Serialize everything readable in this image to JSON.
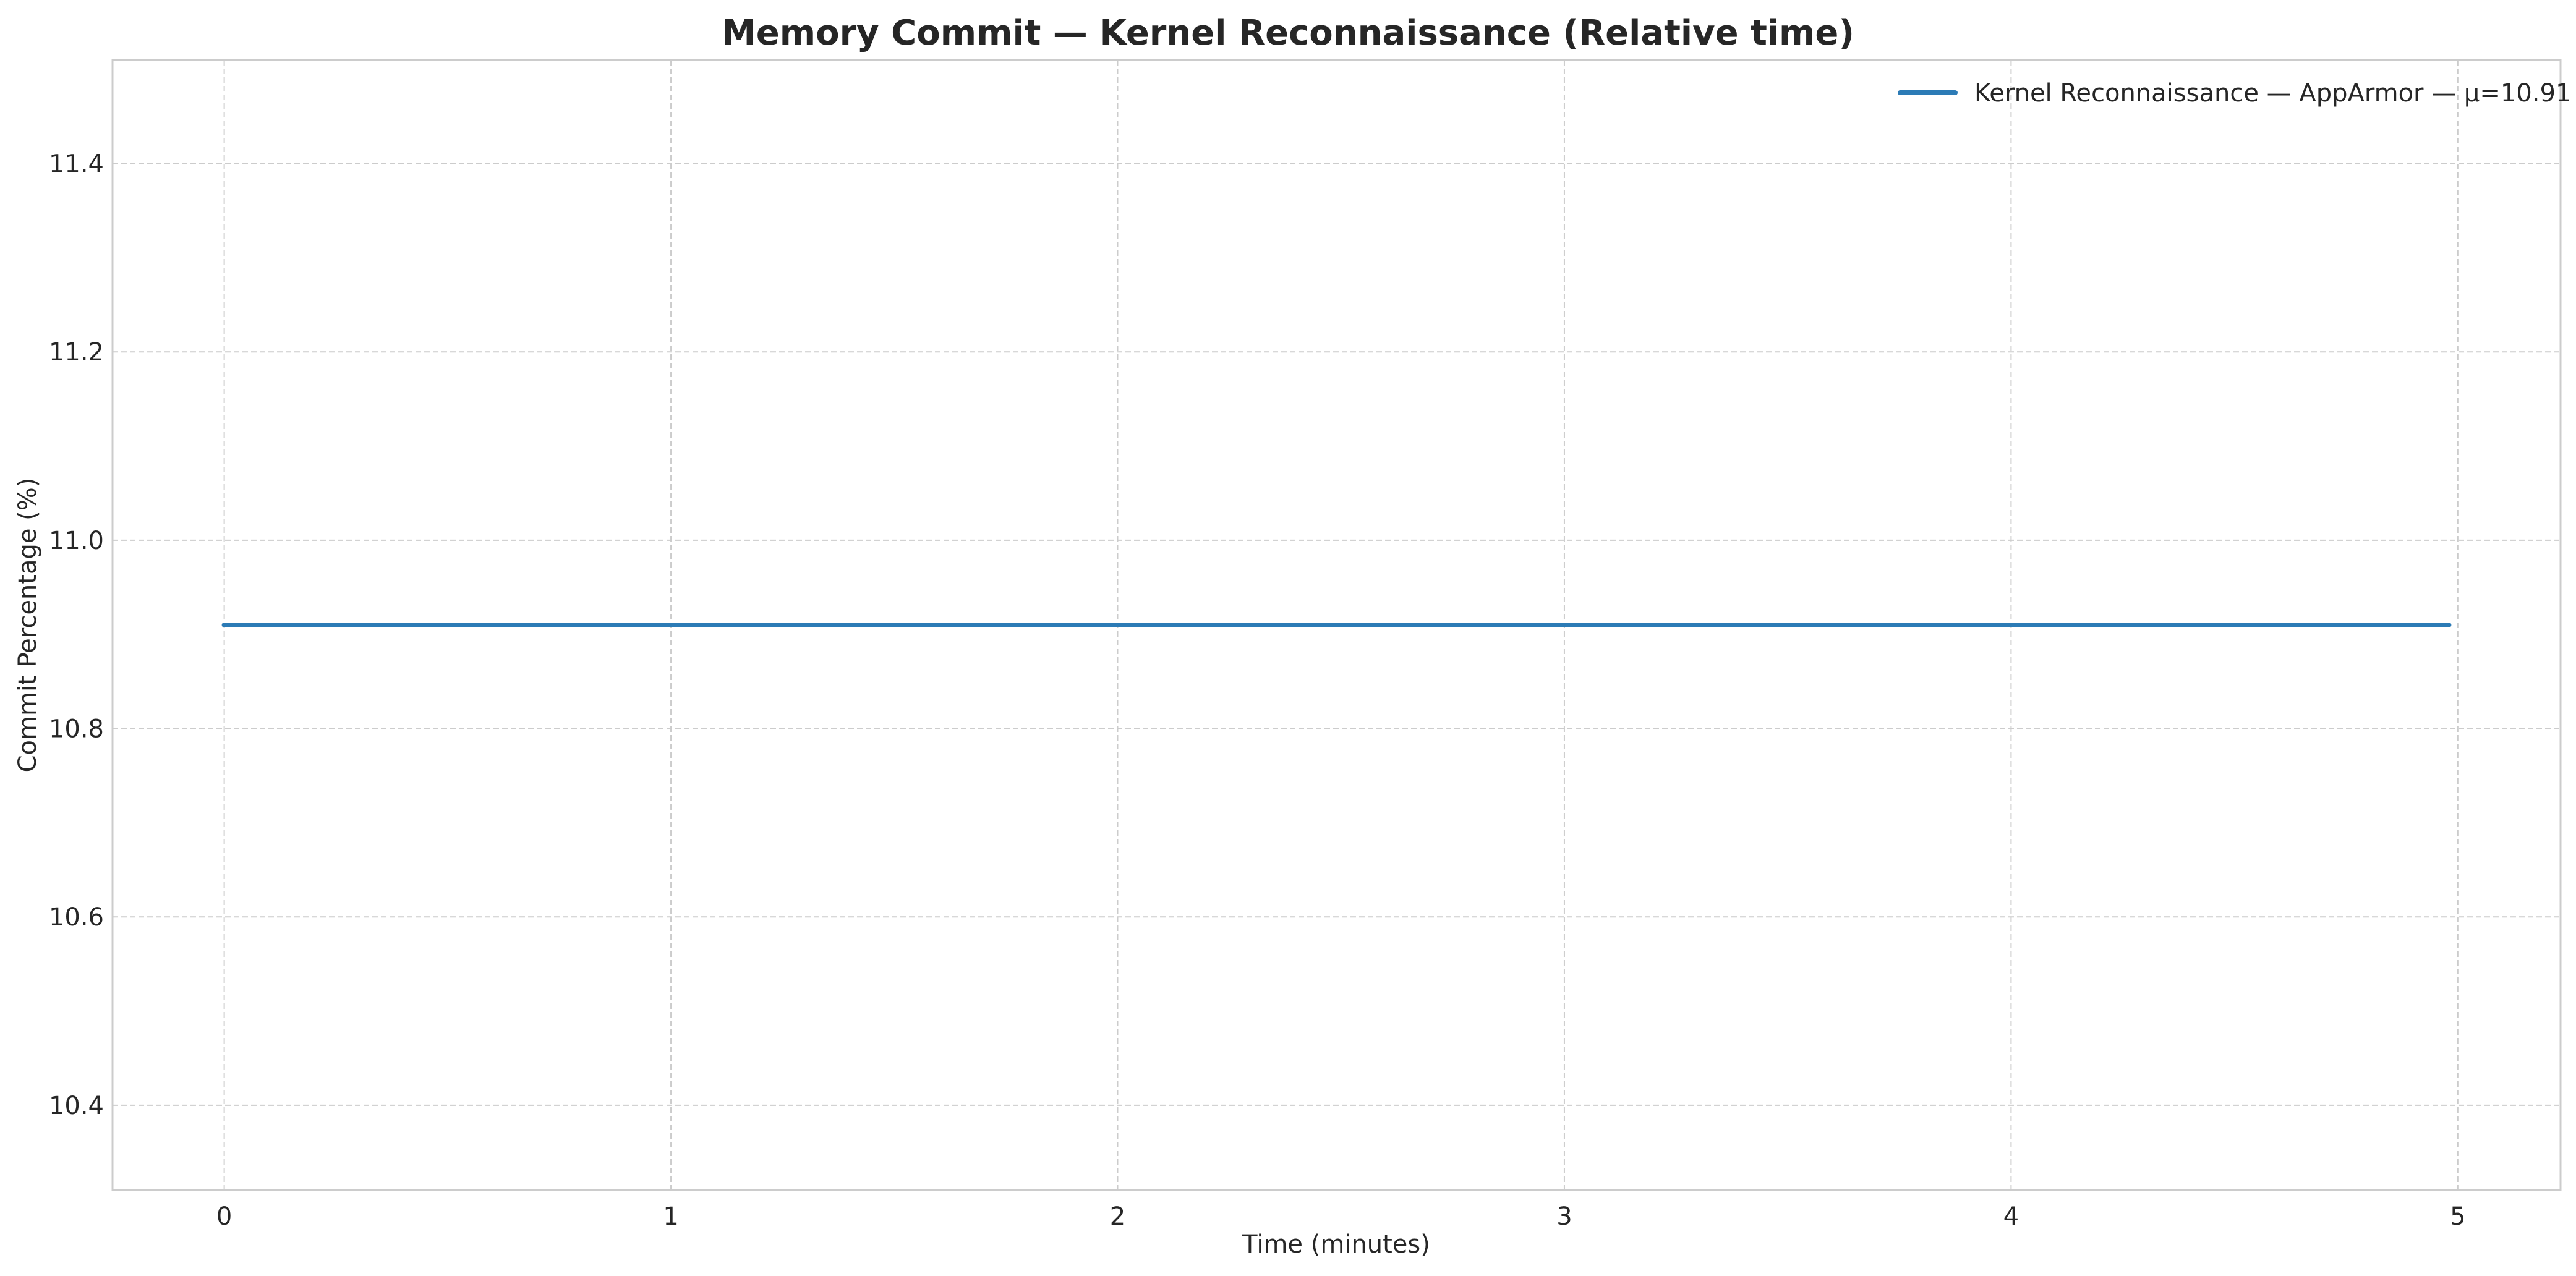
{
  "chart_data": {
    "type": "line",
    "title": "Memory Commit — Kernel Reconnaissance (Relative time)",
    "xlabel": "Time (minutes)",
    "ylabel": "Commit Percentage (%)",
    "xlim": [
      -0.25,
      5.23
    ],
    "ylim": [
      10.31,
      11.51
    ],
    "xticks": [
      0,
      1,
      2,
      3,
      4,
      5
    ],
    "xtick_labels": [
      "0",
      "1",
      "2",
      "3",
      "4",
      "5"
    ],
    "yticks": [
      10.4,
      10.6,
      10.8,
      11.0,
      11.2,
      11.4
    ],
    "ytick_labels": [
      "10.4",
      "10.6",
      "10.8",
      "11.0",
      "11.2",
      "11.4"
    ],
    "grid": true,
    "legend_position": "top-right",
    "series": [
      {
        "name": "Kernel Reconnaissance — AppArmor — μ=10.91",
        "color": "#2c7bb6",
        "x": [
          0,
          4.98
        ],
        "y": [
          10.91,
          10.91
        ]
      }
    ]
  }
}
